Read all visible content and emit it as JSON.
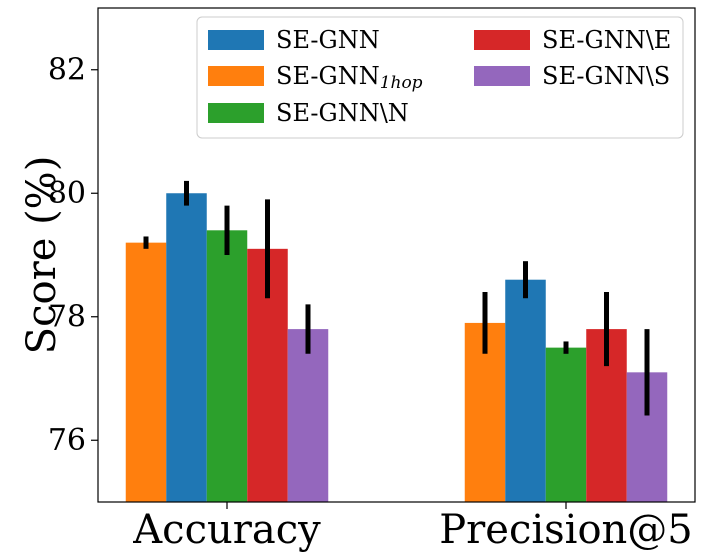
{
  "chart_data": {
    "type": "bar",
    "title": "",
    "xlabel": "",
    "ylabel": "Score (%)",
    "ylim": [
      75,
      83
    ],
    "yticks": [
      76,
      78,
      80,
      82
    ],
    "categories": [
      "Accuracy",
      "Precision@5"
    ],
    "grid": false,
    "legend_position": "top-right",
    "series": [
      {
        "name": "SE-GNN 1hop",
        "label_main": "SE-GNN",
        "label_sub": "1hop",
        "color": "#ff7f0e",
        "values": [
          79.2,
          77.9
        ],
        "errors": [
          0.1,
          0.5
        ]
      },
      {
        "name": "SE-GNN",
        "color": "#1f77b4",
        "values": [
          80.0,
          78.6
        ],
        "errors": [
          0.2,
          0.3
        ]
      },
      {
        "name": "SE-GNN\\N",
        "color": "#2ca02c",
        "values": [
          79.4,
          77.5
        ],
        "errors": [
          0.4,
          0.1
        ]
      },
      {
        "name": "SE-GNN\\E",
        "color": "#d62728",
        "values": [
          79.1,
          77.8
        ],
        "errors": [
          0.8,
          0.6
        ]
      },
      {
        "name": "SE-GNN\\S",
        "color": "#9467bd",
        "values": [
          77.8,
          77.1
        ],
        "errors": [
          0.4,
          0.7
        ]
      }
    ],
    "legend_order": [
      1,
      0,
      2,
      3,
      4
    ]
  }
}
